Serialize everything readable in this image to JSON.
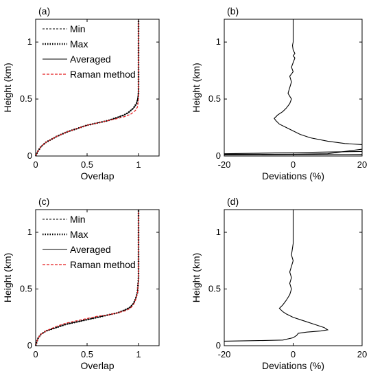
{
  "chart_data": [
    {
      "panel": "(a)",
      "type": "line",
      "xlabel": "Overlap",
      "ylabel": "Height (km)",
      "xlim": [
        0,
        1.2
      ],
      "ylim": [
        0,
        1.2
      ],
      "xticks": [
        "0",
        "0.5",
        "1"
      ],
      "yticks": [
        "0",
        "0.5",
        "1"
      ],
      "legend": {
        "placement": "top-left"
      },
      "series": [
        {
          "name": "Min",
          "style": "thin-dashed",
          "color": "#000000",
          "x": [
            0,
            0.02,
            0.05,
            0.1,
            0.2,
            0.3,
            0.4,
            0.5,
            0.6,
            0.7,
            0.8,
            0.86,
            0.9,
            0.94,
            0.97,
            0.99,
            0.995,
            1.0,
            1.0,
            1.0,
            1.0
          ],
          "y": [
            0,
            0.04,
            0.08,
            0.12,
            0.17,
            0.21,
            0.24,
            0.27,
            0.29,
            0.31,
            0.34,
            0.36,
            0.38,
            0.41,
            0.44,
            0.48,
            0.55,
            0.62,
            0.75,
            0.9,
            1.2
          ]
        },
        {
          "name": "Max",
          "style": "thick-dotted",
          "color": "#000000",
          "x": [
            0,
            0.02,
            0.05,
            0.1,
            0.2,
            0.3,
            0.4,
            0.5,
            0.6,
            0.7,
            0.8,
            0.86,
            0.9,
            0.95,
            0.98,
            0.995,
            1.0,
            1.0,
            1.0
          ],
          "y": [
            0,
            0.04,
            0.08,
            0.12,
            0.17,
            0.21,
            0.24,
            0.27,
            0.29,
            0.31,
            0.34,
            0.36,
            0.38,
            0.42,
            0.46,
            0.5,
            0.55,
            0.9,
            1.2
          ]
        },
        {
          "name": "Averaged",
          "style": "solid",
          "color": "#000000",
          "x": [
            0,
            0.02,
            0.05,
            0.1,
            0.2,
            0.3,
            0.4,
            0.5,
            0.6,
            0.7,
            0.8,
            0.86,
            0.9,
            0.95,
            0.98,
            0.995,
            1.0,
            1.0,
            1.0
          ],
          "y": [
            0,
            0.04,
            0.08,
            0.12,
            0.17,
            0.21,
            0.24,
            0.27,
            0.29,
            0.31,
            0.34,
            0.36,
            0.38,
            0.42,
            0.46,
            0.52,
            0.6,
            0.9,
            1.2
          ]
        },
        {
          "name": "Raman method",
          "style": "dashed",
          "color": "#e41a1c",
          "x": [
            0,
            0.02,
            0.05,
            0.1,
            0.2,
            0.3,
            0.4,
            0.5,
            0.6,
            0.7,
            0.8,
            0.88,
            0.93,
            0.97,
            0.99,
            1.0,
            1.0,
            1.0
          ],
          "y": [
            0,
            0.04,
            0.08,
            0.12,
            0.17,
            0.21,
            0.24,
            0.27,
            0.29,
            0.31,
            0.33,
            0.35,
            0.37,
            0.4,
            0.43,
            0.5,
            0.9,
            1.2
          ]
        }
      ]
    },
    {
      "panel": "(b)",
      "type": "line",
      "xlabel": "Deviations (%)",
      "ylabel": "Height (km)",
      "xlim": [
        -20,
        20
      ],
      "ylim": [
        0,
        1.2
      ],
      "xticks": [
        "-20",
        "0",
        "20"
      ],
      "yticks": [
        "0",
        "0.5",
        "1"
      ],
      "series": [
        {
          "name": "",
          "style": "solid",
          "color": "#000000",
          "x": [
            20,
            15,
            10,
            5,
            2,
            0,
            -2,
            -4,
            -5,
            -5.5,
            -4.5,
            -3,
            -2,
            -1,
            -0.5,
            -1.5,
            -1,
            -0.5,
            -1,
            0,
            -0.5,
            0,
            0.5,
            0,
            0.5,
            0,
            -0.2,
            0,
            0,
            0
          ],
          "y": [
            0.1,
            0.11,
            0.13,
            0.16,
            0.19,
            0.22,
            0.25,
            0.28,
            0.31,
            0.33,
            0.36,
            0.39,
            0.42,
            0.46,
            0.5,
            0.55,
            0.6,
            0.65,
            0.7,
            0.74,
            0.78,
            0.82,
            0.86,
            0.88,
            0.9,
            0.93,
            0.97,
            1.0,
            1.1,
            1.2
          ]
        },
        {
          "name": "",
          "style": "solid",
          "color": "#000000",
          "x": [
            -20,
            -10,
            0,
            10,
            20
          ],
          "y": [
            0.02,
            0.025,
            0.03,
            0.035,
            0.04
          ]
        },
        {
          "name": "",
          "style": "solid",
          "color": "#000000",
          "x": [
            -20,
            0,
            10,
            20
          ],
          "y": [
            0.015,
            0.016,
            0.02,
            0.06
          ]
        },
        {
          "name": "",
          "style": "solid",
          "color": "#000000",
          "x": [
            -20,
            0,
            20
          ],
          "y": [
            0.01,
            0.012,
            0.014
          ]
        }
      ]
    },
    {
      "panel": "(c)",
      "type": "line",
      "xlabel": "Overlap",
      "ylabel": "Height (km)",
      "xlim": [
        0,
        1.2
      ],
      "ylim": [
        0,
        1.2
      ],
      "xticks": [
        "0",
        "0.5",
        "1"
      ],
      "yticks": [
        "0",
        "0.5",
        "1"
      ],
      "legend": {
        "placement": "top-left"
      },
      "series": [
        {
          "name": "Min",
          "style": "thin-dashed",
          "color": "#000000",
          "x": [
            0,
            0.02,
            0.05,
            0.1,
            0.2,
            0.3,
            0.4,
            0.5,
            0.6,
            0.7,
            0.8,
            0.88,
            0.92,
            0.95,
            0.97,
            0.99,
            1.0,
            1.0,
            1.0
          ],
          "y": [
            0,
            0.06,
            0.1,
            0.13,
            0.16,
            0.19,
            0.21,
            0.23,
            0.25,
            0.27,
            0.29,
            0.32,
            0.34,
            0.37,
            0.41,
            0.47,
            0.6,
            0.9,
            1.2
          ]
        },
        {
          "name": "Max",
          "style": "thick-dotted",
          "color": "#000000",
          "x": [
            0,
            0.02,
            0.05,
            0.1,
            0.2,
            0.3,
            0.4,
            0.5,
            0.6,
            0.7,
            0.8,
            0.88,
            0.92,
            0.95,
            0.97,
            0.99,
            1.0,
            1.0,
            1.0
          ],
          "y": [
            0,
            0.06,
            0.1,
            0.13,
            0.16,
            0.19,
            0.21,
            0.23,
            0.25,
            0.27,
            0.29,
            0.32,
            0.34,
            0.37,
            0.41,
            0.47,
            0.6,
            0.9,
            1.2
          ]
        },
        {
          "name": "Averaged",
          "style": "solid",
          "color": "#000000",
          "x": [
            0,
            0.02,
            0.05,
            0.1,
            0.2,
            0.3,
            0.4,
            0.5,
            0.6,
            0.7,
            0.8,
            0.88,
            0.92,
            0.95,
            0.97,
            0.99,
            1.0,
            1.0,
            1.0
          ],
          "y": [
            0,
            0.06,
            0.1,
            0.13,
            0.16,
            0.19,
            0.21,
            0.23,
            0.25,
            0.27,
            0.29,
            0.32,
            0.34,
            0.37,
            0.41,
            0.47,
            0.6,
            0.9,
            1.2
          ]
        },
        {
          "name": "Raman method",
          "style": "dashed",
          "color": "#e41a1c",
          "x": [
            0,
            0.02,
            0.05,
            0.1,
            0.2,
            0.3,
            0.4,
            0.5,
            0.6,
            0.7,
            0.8,
            0.88,
            0.92,
            0.95,
            0.97,
            0.99,
            1.0,
            1.0,
            1.0
          ],
          "y": [
            0,
            0.06,
            0.1,
            0.13,
            0.17,
            0.2,
            0.22,
            0.24,
            0.26,
            0.27,
            0.29,
            0.31,
            0.33,
            0.36,
            0.4,
            0.46,
            0.6,
            0.9,
            1.2
          ]
        }
      ]
    },
    {
      "panel": "(d)",
      "type": "line",
      "xlabel": "Deviations (%)",
      "ylabel": "Height (km)",
      "xlim": [
        -20,
        20
      ],
      "ylim": [
        0,
        1.2
      ],
      "xticks": [
        "-20",
        "0",
        "20"
      ],
      "yticks": [
        "0",
        "0.5",
        "1"
      ],
      "series": [
        {
          "name": "",
          "style": "solid",
          "color": "#000000",
          "x": [
            -20,
            -10,
            -3,
            0,
            1,
            1.5,
            4,
            8,
            10,
            9,
            6,
            3,
            0,
            -2,
            -3,
            -4,
            -3,
            -2,
            -1,
            -0.5,
            -1,
            -0.5,
            -1,
            -0.5,
            0,
            -0.5,
            0,
            0,
            0
          ],
          "y": [
            0.04,
            0.045,
            0.05,
            0.07,
            0.09,
            0.11,
            0.12,
            0.13,
            0.14,
            0.16,
            0.19,
            0.22,
            0.25,
            0.28,
            0.3,
            0.33,
            0.36,
            0.4,
            0.45,
            0.5,
            0.55,
            0.6,
            0.65,
            0.7,
            0.75,
            0.8,
            0.9,
            1.0,
            1.2
          ]
        }
      ]
    }
  ]
}
